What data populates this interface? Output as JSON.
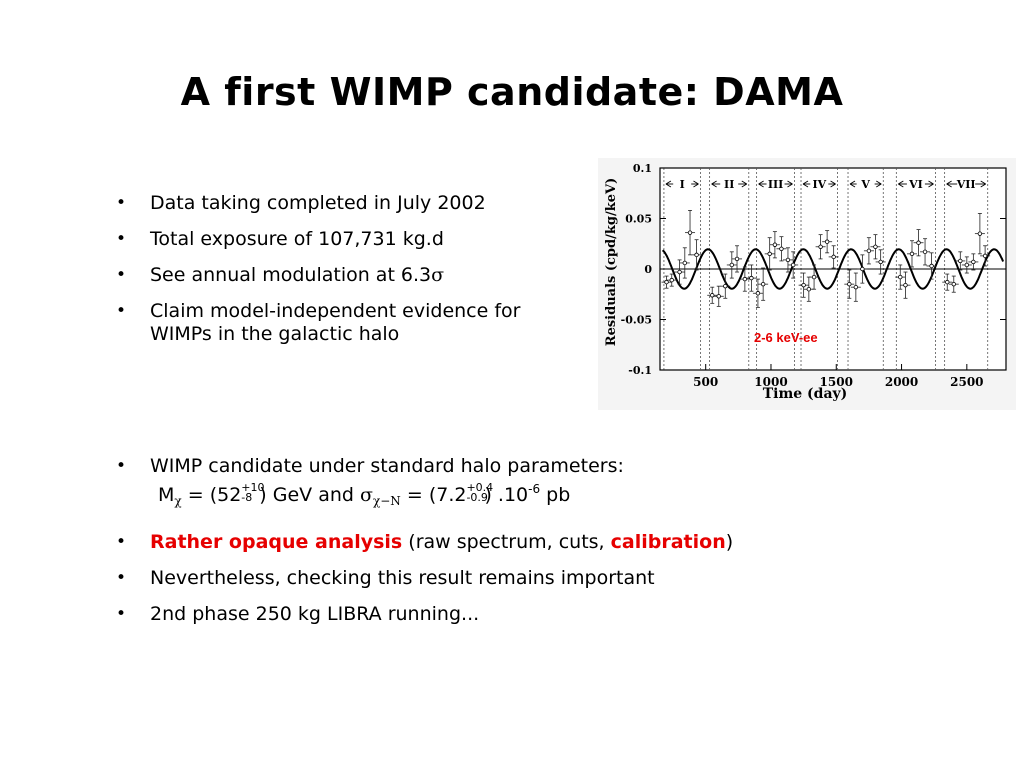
{
  "slide": {
    "title": "A first WIMP candidate: DAMA"
  },
  "top_bullets": [
    {
      "text": "Data taking completed in July 2002"
    },
    {
      "text": "Total exposure of 107,731 kg.d"
    },
    {
      "text": "See annual modulation at 6.3",
      "symbol": "σ"
    },
    {
      "line1": "Claim model-independent evidence for",
      "line2": "WIMPs in the galactic halo"
    }
  ],
  "wimp_bullet": {
    "line1": "WIMP candidate under standard halo parameters:",
    "m_label": "M",
    "m_sub": "χ",
    "m_eq": "= (52",
    "m_up": "+10",
    "m_dn": "-8",
    "m_tail": ") GeV and",
    "sigma": "σ",
    "sigma_sub": "χ−N",
    "s_eq": "= (7.2",
    "s_up": "+0.4",
    "s_dn": "-0.9",
    "s_tail": ") .10",
    "s_exp": "-6",
    "s_unit": "pb"
  },
  "bottom_bullets": [
    {
      "red1": "Rather opaque analysis",
      "plain1": "(raw spectrum, cuts,",
      "red2": "calibration",
      "plain2": ")"
    },
    {
      "text": "Nevertheless, checking this result remains important"
    },
    {
      "text": "2nd phase 250 kg LIBRA running..."
    }
  ],
  "chart_data": {
    "type": "scatter",
    "ylabel": "Residuals (cpd/kg/keV)",
    "xlabel": "Time (day)",
    "xlim": [
      150,
      2800
    ],
    "ylim": [
      -0.1,
      0.1
    ],
    "x_ticks": [
      500,
      1000,
      1500,
      2000,
      2500
    ],
    "x_tick_labels": [
      "500",
      "1000",
      "1500",
      "2000",
      "2500"
    ],
    "y_ticks": [
      0.1,
      0.05,
      0,
      -0.05,
      -0.1
    ],
    "y_tick_labels": [
      "0.1",
      "0.05",
      "0",
      "-0.05",
      "-0.1"
    ],
    "annotation": "2-6 keV-ee",
    "annotation_color": "#e60000",
    "phases": [
      "I",
      "II",
      "III",
      "IV",
      "V",
      "VI",
      "VII"
    ],
    "phase_bounds": [
      [
        180,
        460
      ],
      [
        530,
        830
      ],
      [
        890,
        1180
      ],
      [
        1230,
        1510
      ],
      [
        1590,
        1860
      ],
      [
        1960,
        2260
      ],
      [
        2330,
        2660
      ]
    ],
    "divider_x": [
      180,
      460,
      530,
      830,
      890,
      1180,
      1230,
      1510,
      1590,
      1860,
      1960,
      2260,
      2330,
      2660
    ],
    "fit": {
      "amplitude": 0.0195,
      "period": 365.25,
      "phase": 152.5
    },
    "points": [
      {
        "x": 200,
        "y": -0.013,
        "e": 0.006
      },
      {
        "x": 240,
        "y": -0.011,
        "e": 0.006
      },
      {
        "x": 300,
        "y": -0.003,
        "e": 0.012
      },
      {
        "x": 340,
        "y": 0.006,
        "e": 0.015
      },
      {
        "x": 380,
        "y": 0.036,
        "e": 0.022
      },
      {
        "x": 430,
        "y": 0.014,
        "e": 0.015
      },
      {
        "x": 550,
        "y": -0.026,
        "e": 0.008
      },
      {
        "x": 600,
        "y": -0.027,
        "e": 0.01
      },
      {
        "x": 650,
        "y": -0.017,
        "e": 0.012
      },
      {
        "x": 700,
        "y": 0.004,
        "e": 0.013
      },
      {
        "x": 740,
        "y": 0.01,
        "e": 0.013
      },
      {
        "x": 800,
        "y": -0.01,
        "e": 0.012
      },
      {
        "x": 850,
        "y": -0.009,
        "e": 0.013
      },
      {
        "x": 900,
        "y": -0.024,
        "e": 0.014
      },
      {
        "x": 940,
        "y": -0.015,
        "e": 0.016
      },
      {
        "x": 990,
        "y": 0.015,
        "e": 0.016
      },
      {
        "x": 1030,
        "y": 0.024,
        "e": 0.013
      },
      {
        "x": 1080,
        "y": 0.02,
        "e": 0.012
      },
      {
        "x": 1130,
        "y": 0.009,
        "e": 0.012
      },
      {
        "x": 1170,
        "y": 0.004,
        "e": 0.013
      },
      {
        "x": 1250,
        "y": -0.016,
        "e": 0.012
      },
      {
        "x": 1290,
        "y": -0.02,
        "e": 0.012
      },
      {
        "x": 1330,
        "y": -0.008,
        "e": 0.012
      },
      {
        "x": 1380,
        "y": 0.022,
        "e": 0.012
      },
      {
        "x": 1430,
        "y": 0.027,
        "e": 0.011
      },
      {
        "x": 1480,
        "y": 0.012,
        "e": 0.011
      },
      {
        "x": 1600,
        "y": -0.015,
        "e": 0.014
      },
      {
        "x": 1650,
        "y": -0.018,
        "e": 0.014
      },
      {
        "x": 1700,
        "y": 0.0,
        "e": 0.014
      },
      {
        "x": 1750,
        "y": 0.018,
        "e": 0.013
      },
      {
        "x": 1800,
        "y": 0.022,
        "e": 0.012
      },
      {
        "x": 1840,
        "y": 0.007,
        "e": 0.012
      },
      {
        "x": 1990,
        "y": -0.008,
        "e": 0.012
      },
      {
        "x": 2030,
        "y": -0.016,
        "e": 0.013
      },
      {
        "x": 2080,
        "y": 0.015,
        "e": 0.013
      },
      {
        "x": 2130,
        "y": 0.026,
        "e": 0.013
      },
      {
        "x": 2180,
        "y": 0.017,
        "e": 0.013
      },
      {
        "x": 2230,
        "y": 0.003,
        "e": 0.013
      },
      {
        "x": 2350,
        "y": -0.013,
        "e": 0.008
      },
      {
        "x": 2400,
        "y": -0.015,
        "e": 0.008
      },
      {
        "x": 2450,
        "y": 0.008,
        "e": 0.009
      },
      {
        "x": 2500,
        "y": 0.004,
        "e": 0.008
      },
      {
        "x": 2550,
        "y": 0.007,
        "e": 0.008
      },
      {
        "x": 2600,
        "y": 0.035,
        "e": 0.02
      },
      {
        "x": 2640,
        "y": 0.013,
        "e": 0.01
      }
    ]
  }
}
